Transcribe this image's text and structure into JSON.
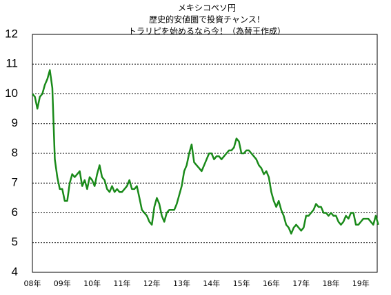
{
  "chart_data": {
    "type": "line",
    "title": [
      "メキシコペソ円",
      "歴史的安値圏で投資チャンス！",
      "トラリピを始めるなら今！（為替王作成）"
    ],
    "categories": [
      "08年",
      null,
      null,
      null,
      null,
      null,
      null,
      null,
      null,
      null,
      null,
      null,
      "09年",
      null,
      null,
      null,
      null,
      null,
      null,
      null,
      null,
      null,
      null,
      null,
      "10年",
      null,
      null,
      null,
      null,
      null,
      null,
      null,
      null,
      null,
      null,
      null,
      "11年",
      null,
      null,
      null,
      null,
      null,
      null,
      null,
      null,
      null,
      null,
      null,
      "12年",
      null,
      null,
      null,
      null,
      null,
      null,
      null,
      null,
      null,
      null,
      null,
      "13年",
      null,
      null,
      null,
      null,
      null,
      null,
      null,
      null,
      null,
      null,
      null,
      "14年",
      null,
      null,
      null,
      null,
      null,
      null,
      null,
      null,
      null,
      null,
      null,
      "15年",
      null,
      null,
      null,
      null,
      null,
      null,
      null,
      null,
      null,
      null,
      null,
      "16年",
      null,
      null,
      null,
      null,
      null,
      null,
      null,
      null,
      null,
      null,
      null,
      "17年",
      null,
      null,
      null,
      null,
      null,
      null,
      null,
      null,
      null,
      null,
      null,
      "18年",
      null,
      null,
      null,
      null,
      null,
      null,
      null,
      null,
      null,
      null,
      null,
      "19年",
      null,
      null,
      null,
      null,
      null,
      null,
      null
    ],
    "series": [
      {
        "color": "#1a8a1a",
        "values": [
          10.0,
          9.9,
          9.5,
          9.9,
          10.0,
          10.3,
          10.5,
          10.8,
          10.2,
          7.8,
          7.2,
          6.8,
          6.8,
          6.4,
          6.4,
          7.0,
          7.3,
          7.2,
          7.3,
          7.4,
          6.9,
          7.1,
          6.8,
          7.2,
          7.1,
          6.9,
          7.3,
          7.6,
          7.2,
          7.1,
          6.8,
          6.7,
          6.9,
          6.7,
          6.8,
          6.7,
          6.7,
          6.8,
          6.9,
          7.1,
          6.8,
          6.8,
          6.9,
          6.5,
          6.1,
          6.0,
          5.9,
          5.7,
          5.6,
          6.2,
          6.5,
          6.3,
          5.9,
          5.7,
          6.0,
          6.1,
          6.1,
          6.1,
          6.3,
          6.6,
          6.9,
          7.4,
          7.6,
          8.0,
          8.3,
          7.7,
          7.6,
          7.5,
          7.4,
          7.6,
          7.8,
          8.0,
          8.0,
          7.8,
          7.9,
          7.9,
          7.8,
          7.9,
          8.0,
          8.1,
          8.1,
          8.2,
          8.5,
          8.4,
          8.0,
          8.0,
          8.1,
          8.1,
          8.0,
          7.9,
          7.8,
          7.6,
          7.5,
          7.3,
          7.4,
          7.2,
          6.7,
          6.4,
          6.2,
          6.4,
          6.1,
          5.9,
          5.6,
          5.5,
          5.3,
          5.5,
          5.6,
          5.5,
          5.4,
          5.5,
          5.9,
          5.9,
          6.0,
          6.1,
          6.3,
          6.2,
          6.2,
          6.0,
          6.0,
          5.9,
          6.0,
          5.9,
          5.9,
          5.7,
          5.6,
          5.7,
          5.9,
          5.8,
          6.0,
          6.0,
          5.6,
          5.6,
          5.7,
          5.8,
          5.8,
          5.8,
          5.7,
          5.6,
          5.9,
          5.6
        ]
      }
    ],
    "ylim": [
      4,
      12
    ],
    "yticks": [
      4,
      5,
      6,
      7,
      8,
      9,
      10,
      11,
      12
    ],
    "grid": true
  }
}
